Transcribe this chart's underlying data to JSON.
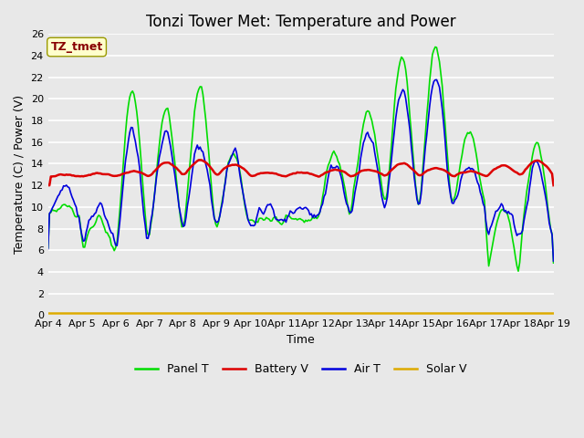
{
  "title": "Tonzi Tower Met: Temperature and Power",
  "xlabel": "Time",
  "ylabel": "Temperature (C) / Power (V)",
  "ylim": [
    0,
    26
  ],
  "yticks": [
    0,
    2,
    4,
    6,
    8,
    10,
    12,
    14,
    16,
    18,
    20,
    22,
    24,
    26
  ],
  "x_labels": [
    "Apr 4",
    "Apr 5",
    "Apr 6",
    "Apr 7",
    "Apr 8",
    "Apr 9",
    "Apr 10",
    "Apr 11",
    "Apr 12",
    "Apr 13",
    "Apr 14",
    "Apr 15",
    "Apr 16",
    "Apr 17",
    "Apr 18",
    "Apr 19"
  ],
  "legend_labels": [
    "Panel T",
    "Battery V",
    "Air T",
    "Solar V"
  ],
  "legend_colors": [
    "#00dd00",
    "#dd0000",
    "#0000dd",
    "#ddaa00"
  ],
  "annotation_text": "TZ_tmet",
  "annotation_bg": "#ffffcc",
  "annotation_fg": "#880000",
  "bg_color": "#e8e8e8",
  "grid_color": "#ffffff",
  "title_fontsize": 12,
  "axis_fontsize": 9,
  "tick_fontsize": 8,
  "solar_v_value": 0.15
}
